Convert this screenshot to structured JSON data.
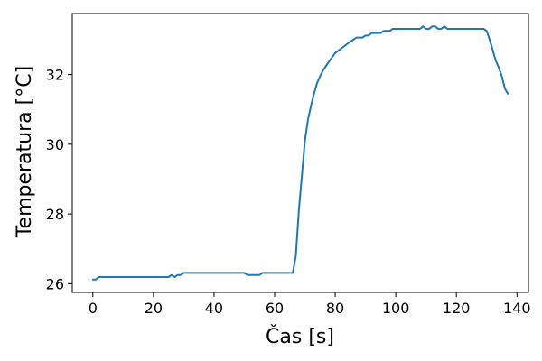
{
  "chart_data": {
    "type": "line",
    "title": "",
    "xlabel": "Čas [s]",
    "ylabel": "Temperatura [°C]",
    "xlim": [
      -6.8,
      143.8
    ],
    "ylim": [
      25.75,
      33.75
    ],
    "xticks": [
      0,
      20,
      40,
      60,
      80,
      100,
      120,
      140
    ],
    "yticks": [
      26,
      28,
      30,
      32
    ],
    "xtick_labels": [
      "0",
      "20",
      "40",
      "60",
      "80",
      "100",
      "120",
      "140"
    ],
    "ytick_labels": [
      "26",
      "28",
      "30",
      "32"
    ],
    "grid": false,
    "series_color": "#1f77b4",
    "series": [
      {
        "x": [
          0,
          1,
          2,
          4,
          6,
          8,
          10,
          12,
          14,
          16,
          18,
          20,
          22,
          24,
          25,
          26,
          27,
          28,
          29,
          30,
          32,
          34,
          36,
          38,
          40,
          42,
          44,
          46,
          48,
          50,
          51,
          52,
          54,
          55,
          56,
          58,
          60,
          62,
          64,
          66,
          67,
          68,
          69,
          70,
          71,
          72,
          73,
          74,
          75,
          76,
          78,
          80,
          82,
          84,
          86,
          87,
          88,
          89,
          90,
          91,
          92,
          94,
          95,
          96,
          97,
          98,
          99,
          100,
          102,
          104,
          106,
          108,
          109,
          110,
          111,
          112,
          113,
          114,
          115,
          116,
          117,
          118,
          120,
          122,
          124,
          126,
          128,
          129,
          130,
          131,
          132,
          133,
          134,
          135,
          136,
          137
        ],
        "y": [
          26.12,
          26.12,
          26.19,
          26.19,
          26.19,
          26.19,
          26.19,
          26.19,
          26.19,
          26.19,
          26.19,
          26.19,
          26.19,
          26.19,
          26.19,
          26.25,
          26.19,
          26.25,
          26.25,
          26.31,
          26.31,
          26.31,
          26.31,
          26.31,
          26.31,
          26.31,
          26.31,
          26.31,
          26.31,
          26.31,
          26.25,
          26.25,
          26.25,
          26.25,
          26.31,
          26.31,
          26.31,
          26.31,
          26.31,
          26.31,
          26.8,
          28.1,
          29.1,
          30.1,
          30.7,
          31.1,
          31.45,
          31.75,
          31.95,
          32.12,
          32.38,
          32.62,
          32.75,
          32.88,
          33.0,
          33.06,
          33.06,
          33.06,
          33.12,
          33.12,
          33.19,
          33.19,
          33.19,
          33.25,
          33.25,
          33.25,
          33.31,
          33.31,
          33.31,
          33.31,
          33.31,
          33.31,
          33.38,
          33.31,
          33.31,
          33.38,
          33.38,
          33.31,
          33.31,
          33.38,
          33.31,
          33.31,
          33.31,
          33.31,
          33.31,
          33.31,
          33.31,
          33.31,
          33.25,
          33.0,
          32.7,
          32.4,
          32.2,
          31.95,
          31.6,
          31.45
        ]
      }
    ]
  }
}
